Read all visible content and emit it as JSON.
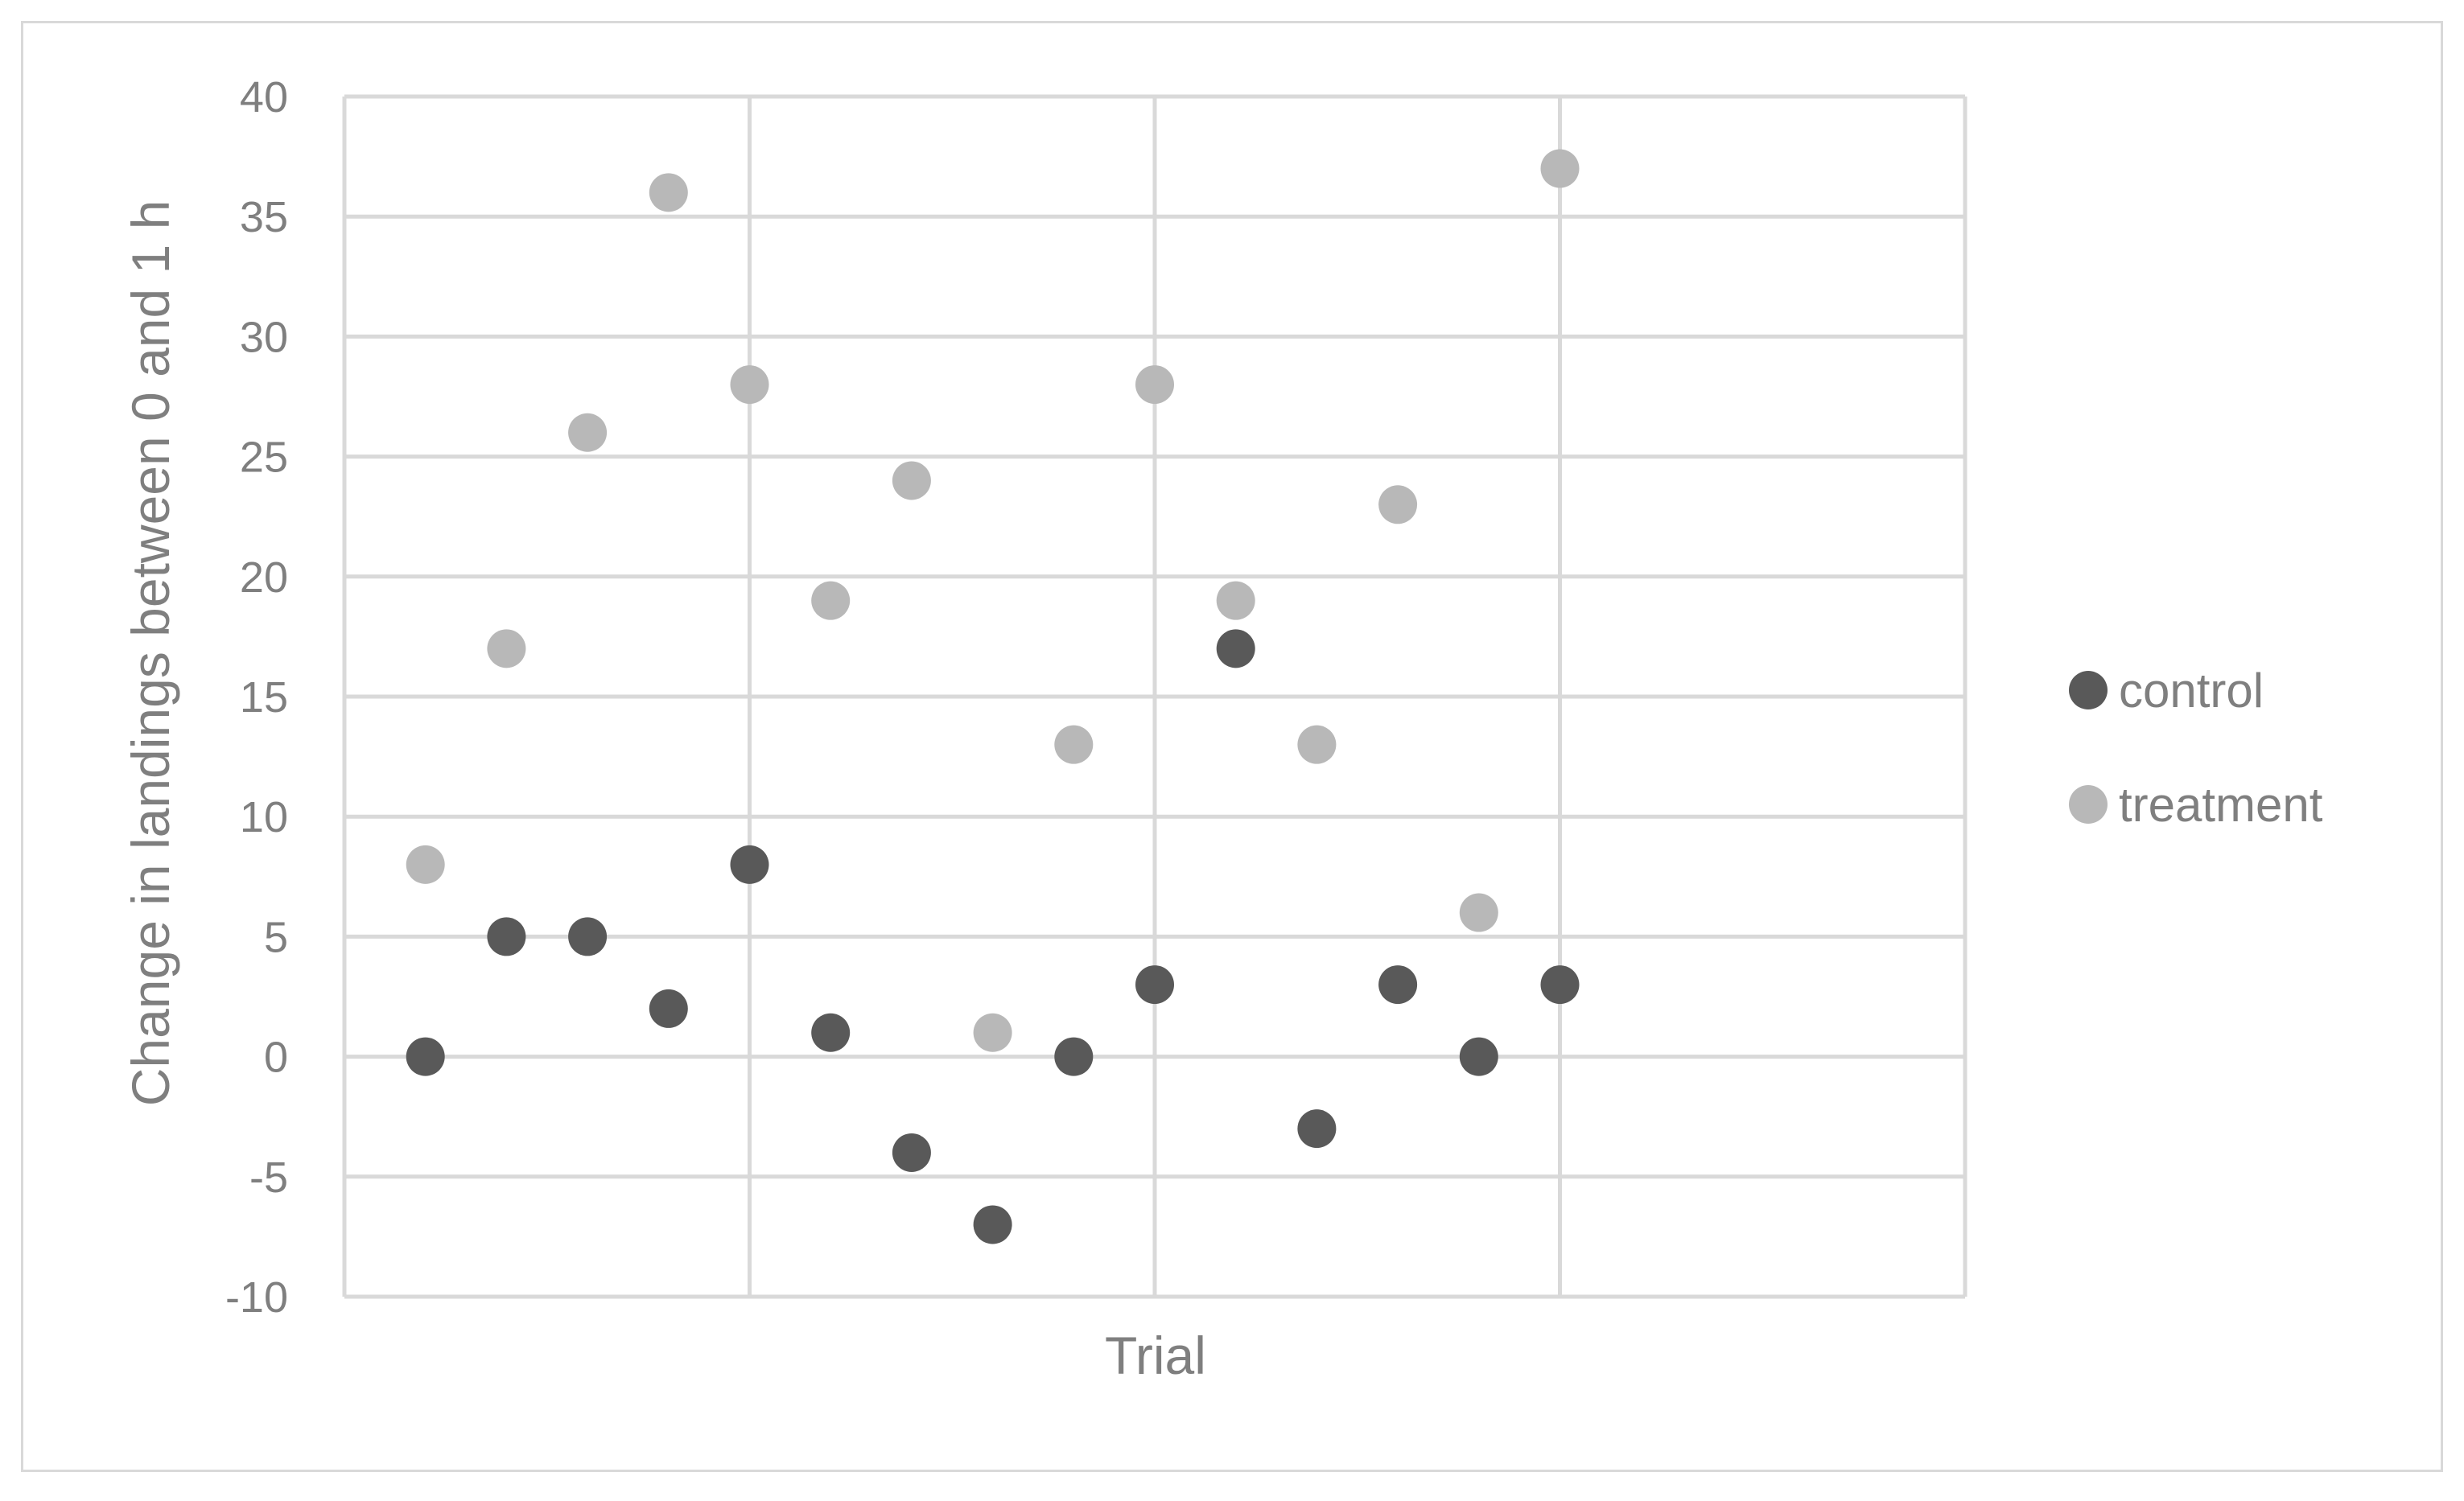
{
  "chart_data": {
    "type": "scatter",
    "xlabel": "Trial",
    "ylabel": "Change in landings between 0 and 1 h",
    "ylim": [
      -10,
      40
    ],
    "yticks": [
      "-10",
      "-5",
      "0",
      "5",
      "10",
      "15",
      "20",
      "25",
      "30",
      "35",
      "40"
    ],
    "xlim": [
      0,
      20
    ],
    "grid": true,
    "legend_position": "right",
    "series": [
      {
        "name": "control",
        "color": "#595959",
        "x": [
          1,
          2,
          3,
          4,
          5,
          6,
          7,
          8,
          9,
          10,
          11,
          12,
          13,
          14,
          15
        ],
        "y": [
          0,
          5,
          5,
          2,
          8,
          1,
          -4,
          -7,
          0,
          3,
          17,
          -3,
          3,
          0,
          3
        ]
      },
      {
        "name": "treatment",
        "color": "#b8b8b8",
        "x": [
          1,
          2,
          3,
          4,
          5,
          6,
          7,
          8,
          9,
          10,
          11,
          12,
          13,
          14,
          15
        ],
        "y": [
          8,
          17,
          26,
          36,
          28,
          19,
          24,
          1,
          13,
          28,
          19,
          13,
          23,
          6,
          37
        ]
      }
    ]
  }
}
